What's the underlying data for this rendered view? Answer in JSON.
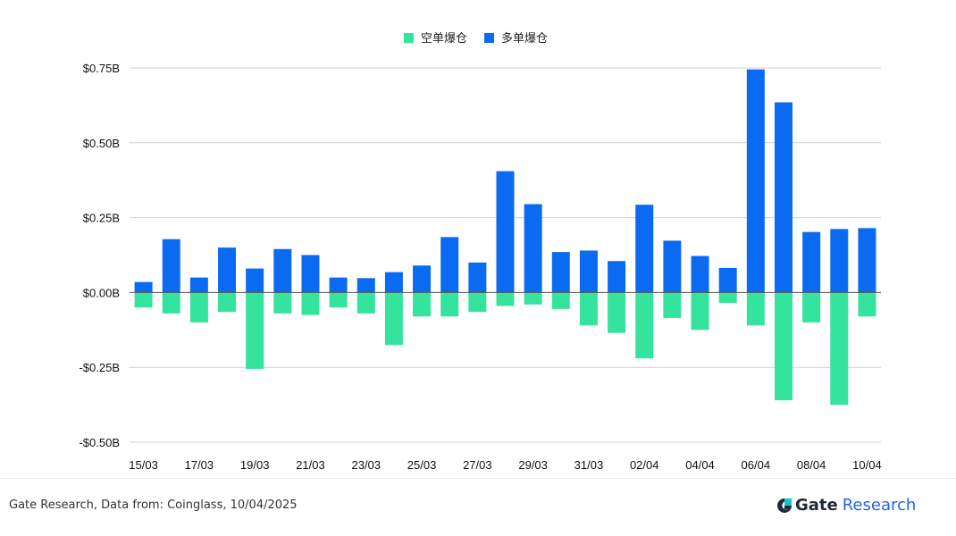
{
  "chart_data": {
    "type": "bar",
    "stacked": true,
    "title": "",
    "xlabel": "",
    "ylabel": "",
    "categories": [
      "15/03",
      "16/03",
      "17/03",
      "18/03",
      "19/03",
      "20/03",
      "21/03",
      "22/03",
      "23/03",
      "24/03",
      "25/03",
      "26/03",
      "27/03",
      "28/03",
      "29/03",
      "30/03",
      "31/03",
      "01/04",
      "02/04",
      "03/04",
      "04/04",
      "05/04",
      "06/04",
      "07/04",
      "08/04",
      "09/04",
      "10/04"
    ],
    "x_tick_labels": [
      "15/03",
      "",
      "17/03",
      "",
      "19/03",
      "",
      "21/03",
      "",
      "23/03",
      "",
      "25/03",
      "",
      "27/03",
      "",
      "29/03",
      "",
      "31/03",
      "",
      "02/04",
      "",
      "04/04",
      "",
      "06/04",
      "",
      "08/04",
      "",
      "10/04"
    ],
    "series": [
      {
        "name": "空单爆仓",
        "color": "#34e39c",
        "values": [
          -0.05,
          -0.07,
          -0.1,
          -0.065,
          -0.255,
          -0.07,
          -0.075,
          -0.05,
          -0.07,
          -0.175,
          -0.08,
          -0.08,
          -0.065,
          -0.045,
          -0.04,
          -0.055,
          -0.11,
          -0.135,
          -0.22,
          -0.085,
          -0.125,
          -0.035,
          -0.11,
          -0.36,
          -0.1,
          -0.375,
          -0.08
        ]
      },
      {
        "name": "多单爆仓",
        "color": "#0b6af2",
        "values": [
          0.035,
          0.178,
          0.05,
          0.15,
          0.08,
          0.145,
          0.125,
          0.05,
          0.048,
          0.068,
          0.09,
          0.185,
          0.1,
          0.405,
          0.295,
          0.135,
          0.14,
          0.105,
          0.293,
          0.173,
          0.122,
          0.082,
          0.745,
          0.635,
          0.202,
          0.212,
          0.215
        ]
      }
    ],
    "yticks": [
      0.75,
      0.5,
      0.25,
      0,
      -0.25,
      -0.5
    ],
    "ytick_labels": [
      "$0.75B",
      "$0.50B",
      "$0.25B",
      "$0.00B",
      "-$0.25B",
      "-$0.50B"
    ],
    "ylim": [
      -0.5,
      0.75
    ],
    "grid": true,
    "legend_position": "top-center"
  },
  "footer": {
    "source": "Gate Research, Data from: Coinglass, 10/04/2025",
    "brand_name": "Gate",
    "brand_suffix": "Research"
  }
}
